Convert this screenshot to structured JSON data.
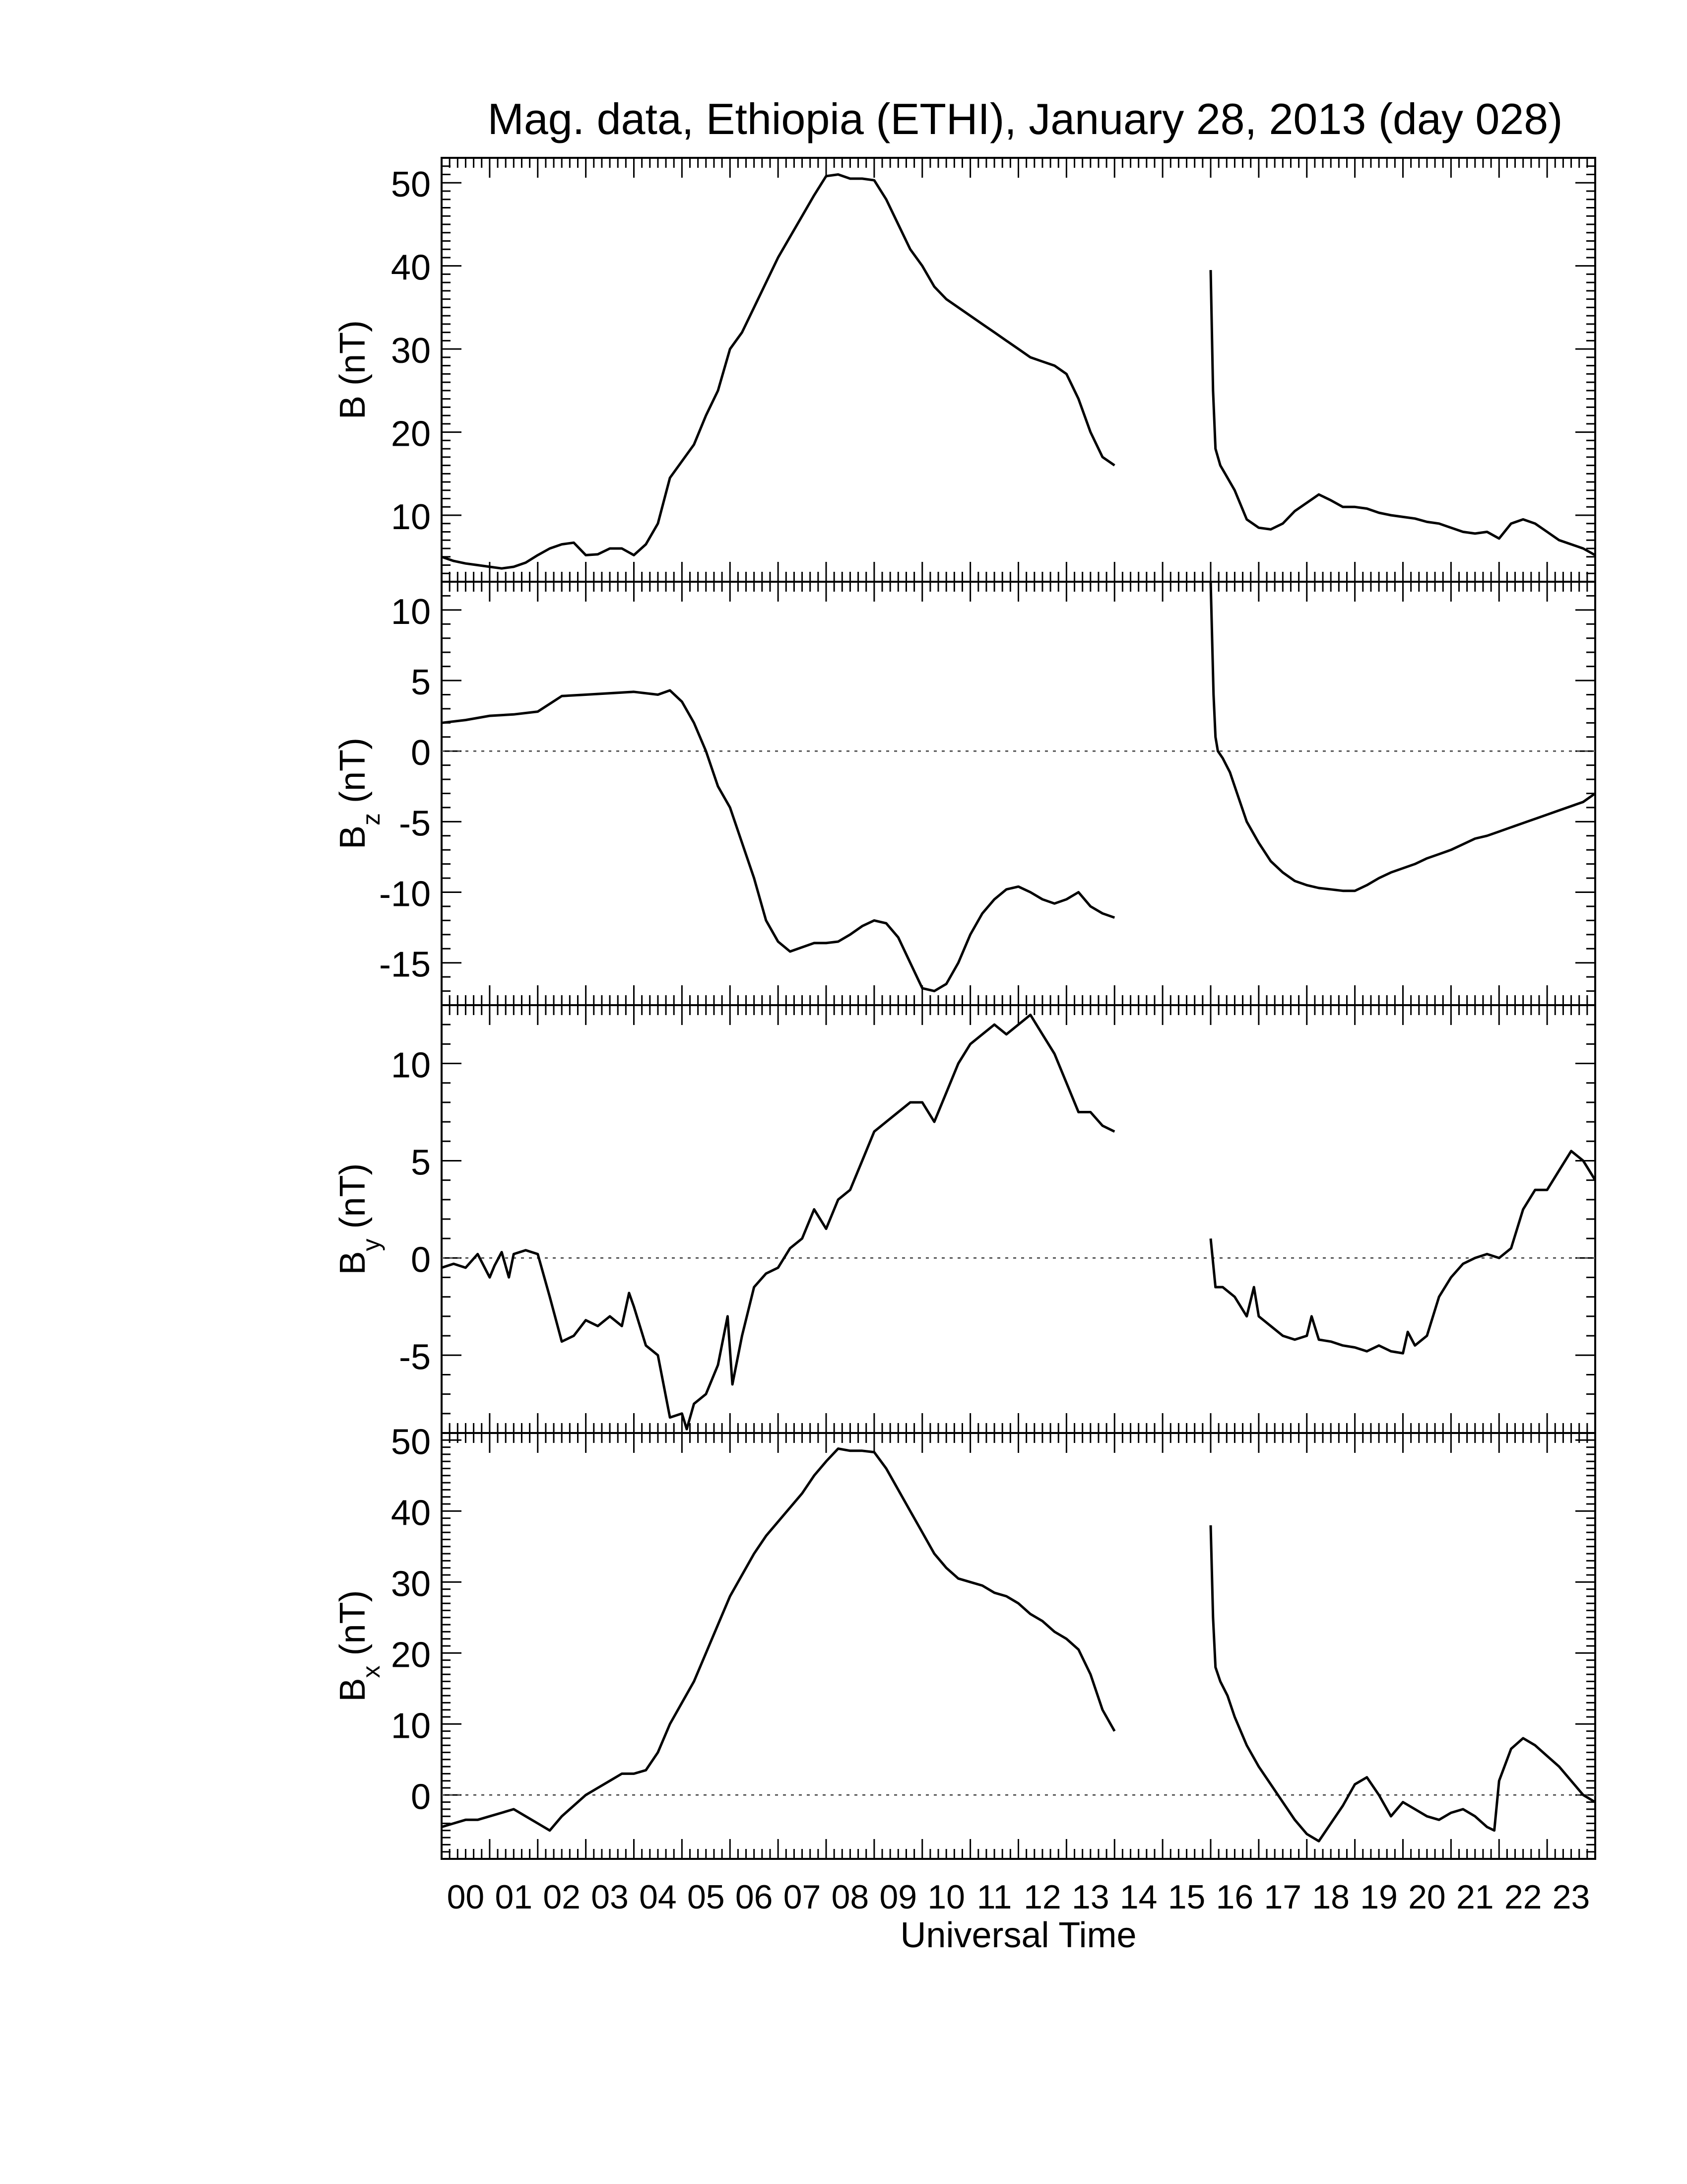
{
  "title": "Mag. data, Ethiopia (ETHI), January 28, 2013 (day 028)",
  "line_color": "#000000",
  "zero_line_color": "#555555",
  "chart_data": [
    {
      "type": "line",
      "id": "B",
      "ylabel": {
        "base": "B",
        "sub": "",
        "unit": "(nT)"
      },
      "ylim": [
        2,
        53
      ],
      "yticks": [
        10,
        20,
        30,
        40,
        50
      ],
      "zero_line": false,
      "x_ticklabels": false,
      "series": [
        {
          "x": [
            0,
            0.25,
            0.5,
            0.75,
            1.0,
            1.25,
            1.5,
            1.75,
            2.0,
            2.25,
            2.5,
            2.75,
            3.0,
            3.25,
            3.5,
            3.75,
            4.0,
            4.25,
            4.5,
            4.75,
            5.0,
            5.25,
            5.5,
            5.75,
            6.0,
            6.25,
            6.5,
            6.75,
            7.0,
            7.25,
            7.5,
            7.75,
            8.0,
            8.25,
            8.5,
            8.75,
            9.0,
            9.25,
            9.5,
            9.75,
            10.0,
            10.25,
            10.5,
            10.75,
            11.0,
            11.25,
            11.5,
            11.75,
            12.0,
            12.25,
            12.5,
            12.75,
            13.0,
            13.25,
            13.5,
            13.75,
            14.0
          ],
          "y": [
            5.0,
            4.5,
            4.2,
            4.0,
            3.8,
            3.6,
            3.8,
            4.3,
            5.2,
            6.0,
            6.5,
            6.7,
            5.2,
            5.3,
            6.0,
            6.0,
            5.2,
            6.5,
            9.0,
            14.5,
            16.5,
            18.5,
            22.0,
            25.0,
            30.0,
            32.0,
            35.0,
            38.0,
            41.0,
            43.5,
            46.0,
            48.5,
            50.8,
            51.0,
            50.5,
            50.5,
            50.3,
            48.0,
            45.0,
            42.0,
            40.0,
            37.5,
            36.0,
            35.0,
            34.0,
            33.0,
            32.0,
            31.0,
            30.0,
            29.0,
            28.5,
            28.0,
            27.0,
            24.0,
            20.0,
            17.0,
            16.0
          ]
        },
        {
          "x": [
            16.0,
            16.05,
            16.1,
            16.2,
            16.3,
            16.5,
            16.75,
            17.0,
            17.25,
            17.5,
            17.75,
            18.0,
            18.25,
            18.5,
            18.75,
            19.0,
            19.25,
            19.5,
            19.75,
            20.0,
            20.25,
            20.5,
            20.75,
            21.0,
            21.25,
            21.5,
            21.75,
            22.0,
            22.25,
            22.5,
            22.75,
            23.0,
            23.25,
            23.5,
            23.75,
            24.0
          ],
          "y": [
            39.5,
            25.0,
            18.0,
            16.0,
            15.0,
            13.0,
            9.5,
            8.5,
            8.3,
            9.0,
            10.5,
            11.5,
            12.5,
            11.8,
            11.0,
            11.0,
            10.8,
            10.3,
            10.0,
            9.8,
            9.6,
            9.2,
            9.0,
            8.5,
            8.0,
            7.8,
            8.0,
            7.2,
            9.0,
            9.5,
            9.0,
            8.0,
            7.0,
            6.5,
            6.0,
            5.2
          ]
        }
      ]
    },
    {
      "type": "line",
      "id": "Bz",
      "ylabel": {
        "base": "B",
        "sub": "z",
        "unit": "(nT)"
      },
      "ylim": [
        -18,
        12
      ],
      "yticks": [
        -15,
        -10,
        -5,
        0,
        5,
        10
      ],
      "zero_line": true,
      "x_ticklabels": false,
      "series": [
        {
          "x": [
            0,
            0.5,
            1.0,
            1.5,
            2.0,
            2.5,
            3.0,
            3.5,
            4.0,
            4.5,
            4.75,
            5.0,
            5.25,
            5.5,
            5.75,
            6.0,
            6.25,
            6.5,
            6.75,
            7.0,
            7.25,
            7.5,
            7.75,
            8.0,
            8.25,
            8.5,
            8.75,
            9.0,
            9.25,
            9.5,
            9.75,
            10.0,
            10.25,
            10.5,
            10.75,
            11.0,
            11.25,
            11.5,
            11.75,
            12.0,
            12.25,
            12.5,
            12.75,
            13.0,
            13.25,
            13.5,
            13.75,
            14.0
          ],
          "y": [
            2.0,
            2.2,
            2.5,
            2.6,
            2.8,
            3.9,
            4.0,
            4.1,
            4.2,
            4.0,
            4.3,
            3.5,
            2.0,
            0.0,
            -2.5,
            -4.0,
            -6.5,
            -9.0,
            -12.0,
            -13.5,
            -14.2,
            -13.9,
            -13.6,
            -13.6,
            -13.5,
            -13.0,
            -12.4,
            -12.0,
            -12.2,
            -13.2,
            -15.0,
            -16.8,
            -17.0,
            -16.5,
            -15.0,
            -13.0,
            -11.5,
            -10.5,
            -9.8,
            -9.6,
            -10.0,
            -10.5,
            -10.8,
            -10.5,
            -10.0,
            -11.0,
            -11.5,
            -11.8
          ]
        },
        {
          "x": [
            16.0,
            16.03,
            16.06,
            16.1,
            16.15,
            16.25,
            16.4,
            16.55,
            16.75,
            17.0,
            17.25,
            17.5,
            17.75,
            18.0,
            18.25,
            18.5,
            18.75,
            19.0,
            19.25,
            19.5,
            19.75,
            20.0,
            20.25,
            20.5,
            20.75,
            21.0,
            21.25,
            21.5,
            21.75,
            22.0,
            22.25,
            22.5,
            22.75,
            23.0,
            23.25,
            23.5,
            23.75,
            24.0
          ],
          "y": [
            12.0,
            8.0,
            4.0,
            1.0,
            0.0,
            -0.5,
            -1.5,
            -3.0,
            -5.0,
            -6.5,
            -7.8,
            -8.6,
            -9.2,
            -9.5,
            -9.7,
            -9.8,
            -9.9,
            -9.9,
            -9.5,
            -9.0,
            -8.6,
            -8.3,
            -8.0,
            -7.6,
            -7.3,
            -7.0,
            -6.6,
            -6.2,
            -6.0,
            -5.7,
            -5.4,
            -5.1,
            -4.8,
            -4.5,
            -4.2,
            -3.9,
            -3.6,
            -3.0
          ]
        }
      ]
    },
    {
      "type": "line",
      "id": "By",
      "ylabel": {
        "base": "B",
        "sub": "y",
        "unit": "(nT)"
      },
      "ylim": [
        -9,
        13
      ],
      "yticks": [
        -5,
        0,
        5,
        10
      ],
      "zero_line": true,
      "x_ticklabels": false,
      "series": [
        {
          "x": [
            0,
            0.25,
            0.5,
            0.75,
            1.0,
            1.1,
            1.25,
            1.4,
            1.5,
            1.75,
            2.0,
            2.25,
            2.5,
            2.75,
            3.0,
            3.25,
            3.5,
            3.75,
            3.9,
            4.0,
            4.25,
            4.5,
            4.75,
            5.0,
            5.1,
            5.25,
            5.5,
            5.75,
            5.95,
            6.05,
            6.25,
            6.5,
            6.75,
            7.0,
            7.25,
            7.5,
            7.75,
            8.0,
            8.25,
            8.5,
            8.75,
            9.0,
            9.25,
            9.5,
            9.75,
            10.0,
            10.25,
            10.5,
            10.75,
            11.0,
            11.25,
            11.5,
            11.75,
            12.0,
            12.25,
            12.5,
            12.75,
            13.0,
            13.25,
            13.5,
            13.75,
            14.0
          ],
          "y": [
            -0.5,
            -0.3,
            -0.5,
            0.2,
            -1.0,
            -0.4,
            0.3,
            -1.0,
            0.2,
            0.4,
            0.2,
            -2.0,
            -4.3,
            -4.0,
            -3.2,
            -3.5,
            -3.0,
            -3.5,
            -1.8,
            -2.5,
            -4.5,
            -5.0,
            -8.2,
            -8.0,
            -8.8,
            -7.5,
            -7.0,
            -5.5,
            -3.0,
            -6.5,
            -4.0,
            -1.5,
            -0.8,
            -0.5,
            0.5,
            1.0,
            2.5,
            1.5,
            3.0,
            3.5,
            5.0,
            6.5,
            7.0,
            7.5,
            8.0,
            8.0,
            7.0,
            8.5,
            10.0,
            11.0,
            11.5,
            12.0,
            11.5,
            12.0,
            12.5,
            11.5,
            10.5,
            9.0,
            7.5,
            7.5,
            6.8,
            6.5
          ]
        },
        {
          "x": [
            16.0,
            16.1,
            16.25,
            16.5,
            16.75,
            16.9,
            17.0,
            17.25,
            17.5,
            17.75,
            18.0,
            18.1,
            18.25,
            18.5,
            18.75,
            19.0,
            19.25,
            19.5,
            19.75,
            20.0,
            20.1,
            20.25,
            20.5,
            20.75,
            21.0,
            21.25,
            21.5,
            21.75,
            22.0,
            22.25,
            22.5,
            22.75,
            23.0,
            23.25,
            23.5,
            23.75,
            24.0
          ],
          "y": [
            1.0,
            -1.5,
            -1.5,
            -2.0,
            -3.0,
            -1.5,
            -3.0,
            -3.5,
            -4.0,
            -4.2,
            -4.0,
            -3.0,
            -4.2,
            -4.3,
            -4.5,
            -4.6,
            -4.8,
            -4.5,
            -4.8,
            -4.9,
            -3.8,
            -4.5,
            -4.0,
            -2.0,
            -1.0,
            -0.3,
            0.0,
            0.2,
            0.0,
            0.5,
            2.5,
            3.5,
            3.5,
            4.5,
            5.5,
            5.0,
            4.0
          ]
        }
      ]
    },
    {
      "type": "line",
      "id": "Bx",
      "ylabel": {
        "base": "B",
        "sub": "x",
        "unit": "(nT)"
      },
      "ylim": [
        -9,
        51
      ],
      "yticks": [
        0,
        10,
        20,
        30,
        40,
        50
      ],
      "zero_line": true,
      "x_ticklabels": true,
      "xlabel": "Universal Time",
      "series": [
        {
          "x": [
            0,
            0.25,
            0.5,
            0.75,
            1.0,
            1.25,
            1.5,
            1.75,
            2.0,
            2.25,
            2.5,
            2.75,
            3.0,
            3.25,
            3.5,
            3.75,
            4.0,
            4.25,
            4.5,
            4.75,
            5.0,
            5.25,
            5.5,
            5.75,
            6.0,
            6.25,
            6.5,
            6.75,
            7.0,
            7.25,
            7.5,
            7.75,
            8.0,
            8.25,
            8.5,
            8.75,
            9.0,
            9.25,
            9.5,
            9.75,
            10.0,
            10.25,
            10.5,
            10.75,
            11.0,
            11.25,
            11.5,
            11.75,
            12.0,
            12.25,
            12.5,
            12.75,
            13.0,
            13.25,
            13.5,
            13.75,
            14.0
          ],
          "y": [
            -4.5,
            -4.0,
            -3.5,
            -3.5,
            -3.0,
            -2.5,
            -2.0,
            -3.0,
            -4.0,
            -5.0,
            -3.0,
            -1.5,
            0.0,
            1.0,
            2.0,
            3.0,
            3.0,
            3.5,
            6.0,
            10.0,
            13.0,
            16.0,
            20.0,
            24.0,
            28.0,
            31.0,
            34.0,
            36.5,
            38.5,
            40.5,
            42.5,
            45.0,
            47.0,
            48.8,
            48.5,
            48.5,
            48.3,
            46.0,
            43.0,
            40.0,
            37.0,
            34.0,
            32.0,
            30.5,
            30.0,
            29.5,
            28.5,
            28.0,
            27.0,
            25.5,
            24.5,
            23.0,
            22.0,
            20.5,
            17.0,
            12.0,
            9.0
          ]
        },
        {
          "x": [
            16.0,
            16.05,
            16.1,
            16.2,
            16.35,
            16.5,
            16.75,
            17.0,
            17.25,
            17.5,
            17.75,
            18.0,
            18.25,
            18.5,
            18.75,
            19.0,
            19.25,
            19.5,
            19.75,
            20.0,
            20.25,
            20.5,
            20.75,
            21.0,
            21.25,
            21.5,
            21.75,
            21.9,
            22.0,
            22.25,
            22.5,
            22.75,
            23.0,
            23.25,
            23.5,
            23.75,
            24.0
          ],
          "y": [
            38.0,
            25.0,
            18.0,
            16.0,
            14.0,
            11.0,
            7.0,
            4.0,
            1.5,
            -1.0,
            -3.5,
            -5.5,
            -6.5,
            -4.0,
            -1.5,
            1.5,
            2.5,
            0.0,
            -3.0,
            -1.0,
            -2.0,
            -3.0,
            -3.5,
            -2.5,
            -2.0,
            -3.0,
            -4.5,
            -5.0,
            2.0,
            6.5,
            8.0,
            7.0,
            5.5,
            4.0,
            2.0,
            0.0,
            -1.0
          ]
        }
      ]
    }
  ],
  "x_axis": {
    "xlim": [
      0,
      24
    ],
    "tick_labels": [
      "00",
      "01",
      "02",
      "03",
      "04",
      "05",
      "06",
      "07",
      "08",
      "09",
      "10",
      "11",
      "12",
      "13",
      "14",
      "15",
      "16",
      "17",
      "18",
      "19",
      "20",
      "21",
      "22",
      "23"
    ]
  }
}
